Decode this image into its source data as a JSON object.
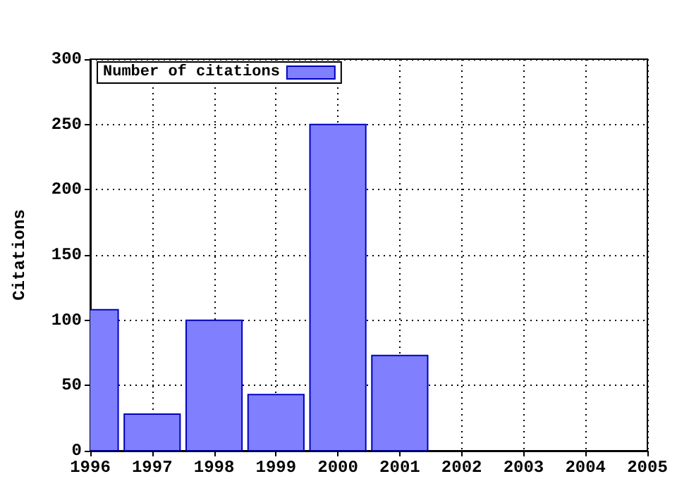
{
  "chart_data": {
    "type": "bar",
    "ylabel": "Citations",
    "x": [
      1996,
      1997,
      1998,
      1999,
      2000,
      2001
    ],
    "series": [
      {
        "name": "Number of citations",
        "color": "#8080ff",
        "values": [
          108,
          28,
          100,
          43,
          250,
          73
        ]
      }
    ],
    "xlim": [
      1996,
      2005
    ],
    "xticks": [
      1996,
      1997,
      1998,
      1999,
      2000,
      2001,
      2002,
      2003,
      2004,
      2005
    ],
    "ylim": [
      0,
      300
    ],
    "yticks": [
      0,
      50,
      100,
      150,
      200,
      250,
      300
    ],
    "grid": true,
    "legend": "top left"
  }
}
